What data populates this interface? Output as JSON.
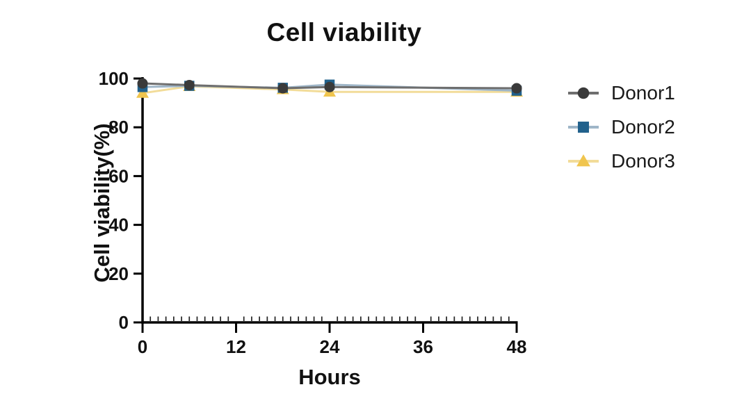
{
  "chart_data": {
    "type": "line",
    "title": "Cell viability",
    "xlabel": "Hours",
    "ylabel": "Cell viability(%)",
    "x": [
      0,
      6,
      18,
      24,
      48
    ],
    "xlim": [
      0,
      48
    ],
    "ylim": [
      0,
      100
    ],
    "x_major_ticks": [
      0,
      12,
      24,
      36,
      48
    ],
    "x_minor_tick_interval": 1,
    "y_major_ticks": [
      0,
      20,
      40,
      60,
      80,
      100
    ],
    "grid": false,
    "legend_position": "right",
    "axis_color": "#000000",
    "text_color": "#111111",
    "series": [
      {
        "name": "Donor1",
        "marker": "circle",
        "marker_color": "#3a3a3a",
        "line_color": "#6e6e6e",
        "values": [
          98,
          97.3,
          96,
          96.5,
          96
        ]
      },
      {
        "name": "Donor2",
        "marker": "square",
        "marker_color": "#21618c",
        "line_color": "#9fb6c8",
        "values": [
          96.5,
          97,
          96.2,
          97.5,
          95
        ]
      },
      {
        "name": "Donor3",
        "marker": "triangle",
        "marker_color": "#f0c54e",
        "line_color": "#f2dc99",
        "values": [
          94,
          96.8,
          95.5,
          94.5,
          94.5
        ]
      }
    ]
  }
}
